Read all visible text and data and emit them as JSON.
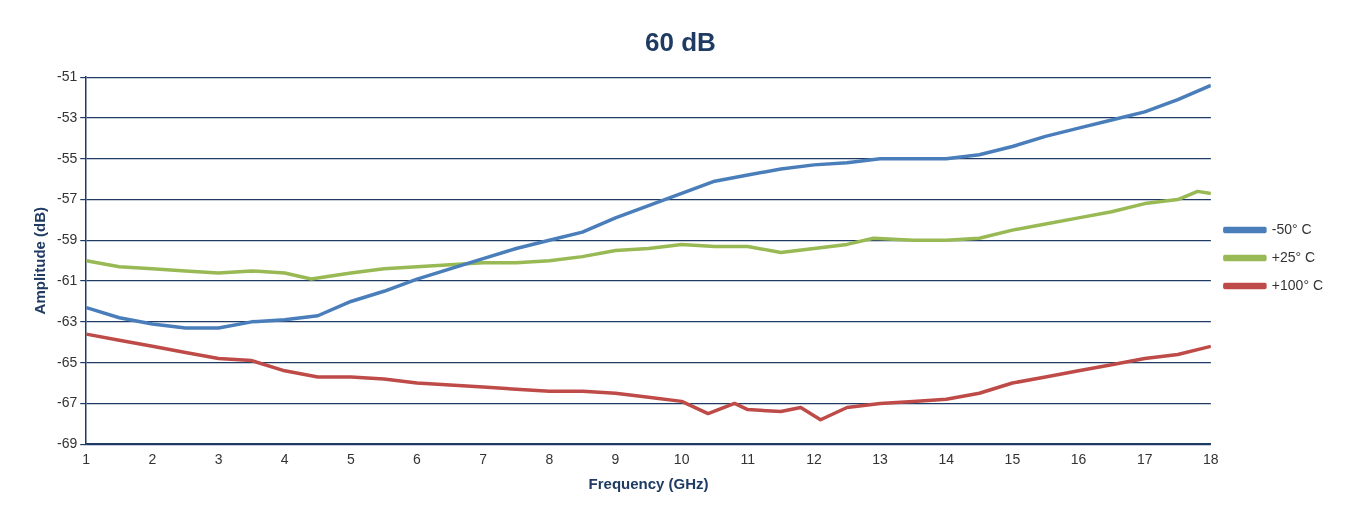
{
  "chart_data": {
    "type": "line",
    "title": "60 dB",
    "xlabel": "Frequency (GHz)",
    "ylabel": "Amplitude (dB)",
    "xlim": [
      1,
      18
    ],
    "xticks": [
      1,
      2,
      3,
      4,
      5,
      6,
      7,
      8,
      9,
      10,
      11,
      12,
      13,
      14,
      15,
      16,
      17,
      18
    ],
    "ylim": [
      -69,
      -51
    ],
    "yticks": [
      -69,
      -67,
      -65,
      -63,
      -61,
      -59,
      -57,
      -55,
      -53,
      -51
    ],
    "grid": "y",
    "legend": "right",
    "marker": "none",
    "line_style": "solid",
    "series": [
      {
        "name": "-50° C",
        "color": "#4a7ebb",
        "x": [
          1,
          1.5,
          2,
          2.5,
          3,
          3.5,
          4,
          4.5,
          5,
          5.5,
          6,
          6.5,
          7,
          7.5,
          8,
          8.5,
          9,
          9.5,
          10,
          10.5,
          11,
          11.5,
          12,
          12.5,
          13,
          13.5,
          14,
          14.5,
          15,
          15.5,
          16,
          16.5,
          17,
          17.5,
          18
        ],
        "values": [
          -62.3,
          -62.8,
          -63.1,
          -63.3,
          -63.3,
          -63.0,
          -62.9,
          -62.7,
          -62.0,
          -61.5,
          -60.9,
          -60.4,
          -59.9,
          -59.4,
          -59.0,
          -58.6,
          -57.9,
          -57.3,
          -56.7,
          -56.1,
          -55.8,
          -55.5,
          -55.3,
          -55.2,
          -55.0,
          -55.0,
          -55.0,
          -54.8,
          -54.4,
          -53.9,
          -53.5,
          -53.1,
          -52.7,
          -52.1,
          -51.4
        ]
      },
      {
        "name": "+25° C",
        "color": "#98b954",
        "x": [
          1,
          1.5,
          2,
          2.5,
          3,
          3.5,
          4,
          4.4,
          5,
          5.5,
          6,
          6.5,
          7,
          7.5,
          8,
          8.5,
          9,
          9.5,
          10,
          10.5,
          11,
          11.5,
          12,
          12.5,
          12.9,
          13.5,
          14,
          14.5,
          15,
          15.5,
          16,
          16.5,
          17,
          17.5,
          17.8,
          18
        ],
        "values": [
          -60.0,
          -60.3,
          -60.4,
          -60.5,
          -60.6,
          -60.5,
          -60.6,
          -60.9,
          -60.6,
          -60.4,
          -60.3,
          -60.2,
          -60.1,
          -60.1,
          -60.0,
          -59.8,
          -59.5,
          -59.4,
          -59.2,
          -59.3,
          -59.3,
          -59.6,
          -59.4,
          -59.2,
          -58.9,
          -59.0,
          -59.0,
          -58.9,
          -58.5,
          -58.2,
          -57.9,
          -57.6,
          -57.2,
          -57.0,
          -56.6,
          -56.7
        ]
      },
      {
        "name": "+100° C",
        "color": "#be4b48",
        "x": [
          1,
          1.5,
          2,
          2.5,
          3,
          3.5,
          4,
          4.5,
          5,
          5.5,
          6,
          6.5,
          7,
          7.5,
          8,
          8.5,
          9,
          9.5,
          10,
          10.4,
          10.8,
          11,
          11.5,
          11.8,
          12.1,
          12.5,
          13,
          13.5,
          14,
          14.5,
          15,
          15.5,
          16,
          16.5,
          17,
          17.5,
          18
        ],
        "values": [
          -63.6,
          -63.9,
          -64.2,
          -64.5,
          -64.8,
          -64.9,
          -65.4,
          -65.7,
          -65.7,
          -65.8,
          -66.0,
          -66.1,
          -66.2,
          -66.3,
          -66.4,
          -66.4,
          -66.5,
          -66.7,
          -66.9,
          -67.5,
          -67.0,
          -67.3,
          -67.4,
          -67.2,
          -67.8,
          -67.2,
          -67.0,
          -66.9,
          -66.8,
          -66.5,
          -66.0,
          -65.7,
          -65.4,
          -65.1,
          -64.8,
          -64.6,
          -64.2
        ]
      }
    ]
  }
}
